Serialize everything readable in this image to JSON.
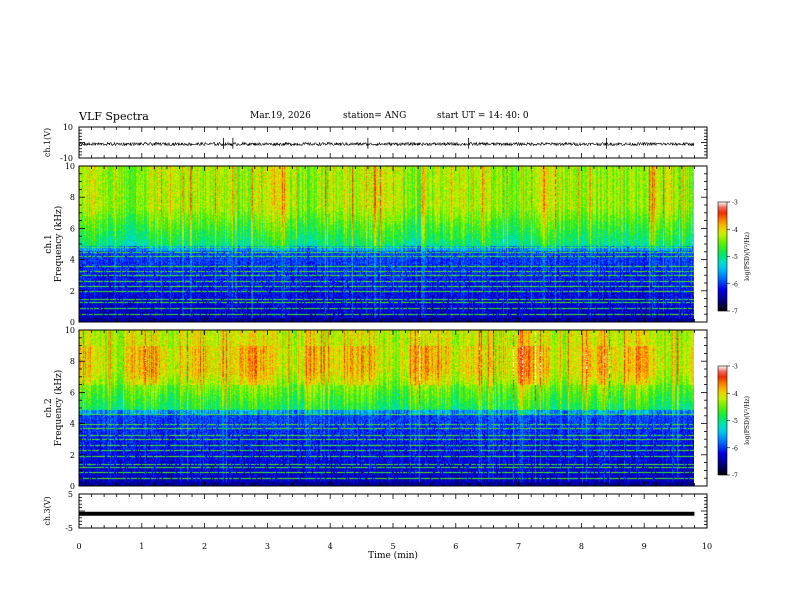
{
  "header": {
    "title": "VLF Spectra",
    "date": "Mar.19, 2026",
    "station": "station= ANG",
    "start": "start  UT =   14: 40: 0"
  },
  "chart_data": [
    {
      "type": "line",
      "ylabel": "ch.1(V)",
      "ylim": [
        -10,
        10
      ],
      "yticks": [
        "10",
        "-10"
      ],
      "xlim": [
        0,
        9.8
      ],
      "baseline": -1,
      "noise_amplitude": 1,
      "spike_times": [
        2.3,
        2.45,
        4.6,
        6.2,
        8.4
      ]
    },
    {
      "type": "heatmap",
      "ylabel_top": "ch.1",
      "ylabel": "Frequency (kHz)",
      "ylim": [
        0,
        10
      ],
      "yticks": [
        "0",
        "2",
        "4",
        "6",
        "8",
        "10"
      ],
      "xlim": [
        0,
        9.8
      ],
      "colorbar": {
        "range": [
          -7,
          -3
        ],
        "ticks": [
          "-3",
          "-4",
          "-5",
          "-6",
          "-7"
        ],
        "label": "log(PSD)(V²/Hz)"
      }
    },
    {
      "type": "heatmap",
      "ylabel_top": "ch.2",
      "ylabel": "Frequency (kHz)",
      "ylim": [
        0,
        10
      ],
      "yticks": [
        "0",
        "2",
        "4",
        "6",
        "8",
        "10"
      ],
      "xlim": [
        0,
        9.8
      ],
      "colorbar": {
        "range": [
          -7,
          -3
        ],
        "ticks": [
          "-3",
          "-4",
          "-5",
          "-6",
          "-7"
        ],
        "label": "log(PSD)(V²/Hz)"
      }
    },
    {
      "type": "line",
      "ylabel": "ch.3(V)",
      "ylim": [
        -5,
        5
      ],
      "yticks": [
        "5",
        "-5"
      ],
      "xlim": [
        0,
        9.8
      ],
      "baseline": -0.8
    }
  ],
  "x_axis": {
    "label": "Time (min)",
    "ticks": [
      "0",
      "1",
      "2",
      "3",
      "4",
      "5",
      "6",
      "7",
      "8",
      "9",
      "10"
    ]
  }
}
